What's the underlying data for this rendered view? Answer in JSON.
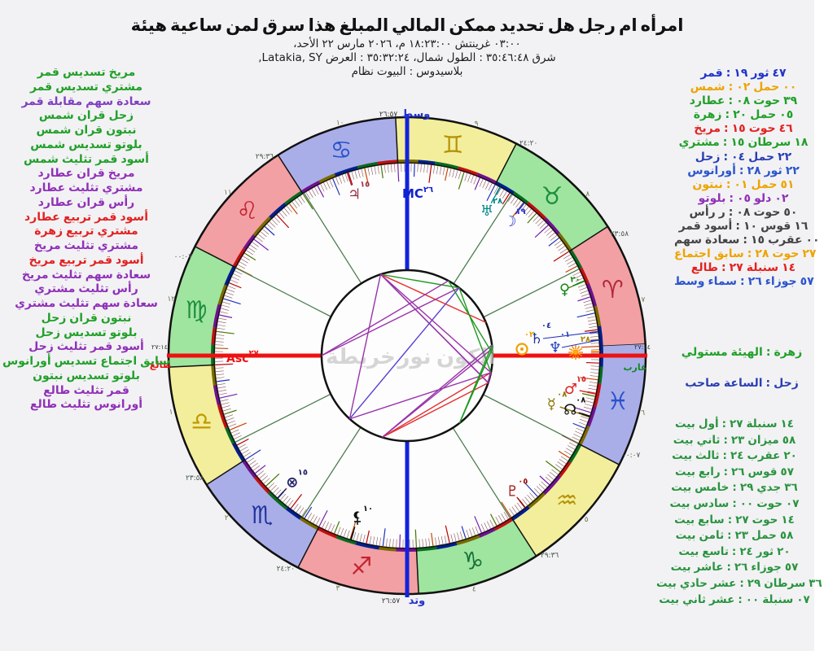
{
  "header": {
    "title": "هيئة ساعية لمن سرق هذا المبلغ المالي ممكن تحديد هل رجل ام امرأه",
    "date_line": "الأحد، ٢٢ مارس ٢٠٢٦ م، ١٨:٢٣:٠٠ غرينتش ٠٣:٠٠",
    "location_line": ",Latakia, SY العرض: ٣٥:٣٢:٢٤ شمال، الطول: ٣٥:٤٦:٤٨ شرق",
    "house_system_line": "نظام البيوت: بلاسيدوس"
  },
  "aspects_panel": [
    {
      "text": "قمر تسديس مريخ",
      "color": "#22a02a"
    },
    {
      "text": "قمر تسديس مشتري",
      "color": "#22a02a"
    },
    {
      "text": "قمر مقابلة سهم سعادة",
      "color": "#8040c0"
    },
    {
      "text": "شمس قران زحل",
      "color": "#22a02a"
    },
    {
      "text": "شمس قران نبتون",
      "color": "#22a02a"
    },
    {
      "text": "شمس تسديس بلوتو",
      "color": "#22a02a"
    },
    {
      "text": "شمس تثليث قمر أسود",
      "color": "#22a02a"
    },
    {
      "text": "عطارد قران مريخ",
      "color": "#9031b8"
    },
    {
      "text": "عطارد تثليث مشتري",
      "color": "#9031b8"
    },
    {
      "text": "عطارد قران رأس",
      "color": "#9031b8"
    },
    {
      "text": "عطارد تربيع قمر أسود",
      "color": "#e32222"
    },
    {
      "text": "زهرة تربيع مشتري",
      "color": "#e32222"
    },
    {
      "text": "مريخ تثليث مشتري",
      "color": "#9031b8"
    },
    {
      "text": "مريخ تربيع قمر أسود",
      "color": "#e32222"
    },
    {
      "text": "مريخ تثليث سهم سعادة",
      "color": "#9031b8"
    },
    {
      "text": "مشتري تثليث رأس",
      "color": "#9031b8"
    },
    {
      "text": "مشتري تثليث سهم سعادة",
      "color": "#9031b8"
    },
    {
      "text": "زحل قران نبتون",
      "color": "#22a02a"
    },
    {
      "text": "زحل تسديس بلوتو",
      "color": "#22a02a"
    },
    {
      "text": "زحل تثليث قمر أسود",
      "color": "#9031b8"
    },
    {
      "text": "أورانوس تسديس اجتماع سابق",
      "color": "#22a02a"
    },
    {
      "text": "نبتون تسديس بلوتو",
      "color": "#22a02a"
    },
    {
      "text": "طالع تثليث قمر",
      "color": "#9031b8"
    },
    {
      "text": "طالع تثليث أورانوس",
      "color": "#9031b8"
    }
  ],
  "planets_panel": [
    {
      "text": "قمر: ١٩ثور٤٧",
      "color": "#2233cc"
    },
    {
      "text": "شمس: ٠٢حمل٠٠",
      "color": "#eda400"
    },
    {
      "text": "عطارد: ٠٨حوت٣٩",
      "color": "#22a02a"
    },
    {
      "text": "زهرة: ٢٠حمل٠٥",
      "color": "#22a02a"
    },
    {
      "text": "مريخ: ١٥حوت٤٦",
      "color": "#e32222"
    },
    {
      "text": "مشتري: ١٥سرطان١٨",
      "color": "#22a02a"
    },
    {
      "text": "زحل: ٠٤حمل٢٢",
      "color": "#2b3fb3"
    },
    {
      "text": "أورانوس: ٢٨ثور٢٢",
      "color": "#2d55cc"
    },
    {
      "text": "نبتون: ٠١حمل٥١",
      "color": "#eda400"
    },
    {
      "text": "بلوتو: ٠٥دلو٠٢",
      "color": "#9031b8"
    },
    {
      "text": "رأس ر: ٠٨حوت٥٠",
      "color": "#444444"
    },
    {
      "text": "قمر أسود: ١٠قوس١٦",
      "color": "#444444"
    },
    {
      "text": "سهم سعادة: ١٥عقرب٠٠",
      "color": "#444444"
    },
    {
      "text": "اجتماع سابق: ٢٨حوت٢٧",
      "color": "#eda400"
    },
    {
      "text": "طالع: ٢٧سنبلة١٤",
      "color": "#e32222"
    },
    {
      "text": "وسط سماء: ٢٦جوزاء٥٧",
      "color": "#2d55cc"
    }
  ],
  "rulers_panel": [
    {
      "text": "مستولي الهيئة: زهرة",
      "color": "#22a02a"
    },
    {
      "text": "صاحب الساعة: زحل",
      "color": "#2b3fb3"
    }
  ],
  "houses_panel": {
    "color": "#2a9440",
    "items": [
      "بيت أول: ٢٧سنبلة١٤",
      "بيت ثاني: ٢٣ميزان٥٨",
      "بيت ثالث: ٢٤عقرب٢٠",
      "بيت رابع: ٢٦قوس٥٧",
      "بيت خامس: ٢٩جدي٣٦",
      "بيت سادس: ٠٠حوت٠٧",
      "بيت سابع: ٢٧حوت١٤",
      "بيت ثامن: ٢٣حمل٥٨",
      "بيت تاسع: ٢٤ثور٢٠",
      "بيت عاشر: ٢٦جوزاء٥٧",
      "بيت حادي عشر: ٢٩سرطان٣٦",
      "بيت ثاني عشر: ٠٠سنبلة٠٧"
    ]
  },
  "chart_data": {
    "type": "horary-astrology-wheel",
    "title": "هيئة ساعية لمن سرق هذا المبلغ المالي ممكن تحديد هل رجل ام امرأه",
    "center": [
      500,
      437
    ],
    "radii": {
      "outer": 293,
      "band_inner": 237,
      "inner": 105,
      "sign_glyph": 265
    },
    "asc_lon": 177.2333,
    "inner_fill": "#fdfdfe",
    "signs": [
      {
        "name": "aries",
        "glyph": "♈",
        "band": "#f2a0a3",
        "glyph_color": "#b02838"
      },
      {
        "name": "taurus",
        "glyph": "♉",
        "band": "#9fe59f",
        "glyph_color": "#1e8f3e"
      },
      {
        "name": "gemini",
        "glyph": "♊",
        "band": "#f3ee9b",
        "glyph_color": "#b5930a"
      },
      {
        "name": "cancer",
        "glyph": "♋",
        "band": "#a9aee8",
        "glyph_color": "#2a52cc"
      },
      {
        "name": "leo",
        "glyph": "♌",
        "band": "#f2a0a3",
        "glyph_color": "#c42333"
      },
      {
        "name": "virgo",
        "glyph": "♍",
        "band": "#9fe59f",
        "glyph_color": "#1e8f3e"
      },
      {
        "name": "libra",
        "glyph": "♎",
        "band": "#f3ee9b",
        "glyph_color": "#bf9a00"
      },
      {
        "name": "scorpio",
        "glyph": "♏",
        "band": "#a9aee8",
        "glyph_color": "#223399"
      },
      {
        "name": "sagittarius",
        "glyph": "♐",
        "band": "#f2a0a3",
        "glyph_color": "#c42333"
      },
      {
        "name": "capricorn",
        "glyph": "♑",
        "band": "#9fe59f",
        "glyph_color": "#17703a"
      },
      {
        "name": "aquarius",
        "glyph": "♒",
        "band": "#f3ee9b",
        "glyph_color": "#b5930a"
      },
      {
        "name": "pisces",
        "glyph": "♓",
        "band": "#a9aee8",
        "glyph_color": "#2a52cc"
      }
    ],
    "planets": [
      {
        "id": "moon",
        "glyph": "☽",
        "lon": 49.783,
        "r": 208,
        "color": "#2233cc",
        "deg": "١٩"
      },
      {
        "id": "uranus",
        "glyph": "♅",
        "lon": 58.367,
        "r": 203,
        "color": "#008888",
        "deg": "٢٨"
      },
      {
        "id": "venus",
        "glyph": "♀",
        "lon": 20.083,
        "r": 210,
        "color": "#118811",
        "deg": "٢٠"
      },
      {
        "id": "sun",
        "glyph": "sun",
        "lon": 2.0,
        "pos": [
          641,
          429
        ],
        "color": "#f0a000",
        "deg": "٠٢",
        "degpos": [
          650,
          414
        ]
      },
      {
        "id": "saturn",
        "glyph": "♄",
        "lon": 4.367,
        "pos": [
          659,
          416
        ],
        "color": "#223399",
        "deg": "٠٤",
        "degpos": [
          671,
          403
        ]
      },
      {
        "id": "neptune",
        "glyph": "♆",
        "lon": 1.85,
        "pos": [
          682,
          427
        ],
        "color": "#2244bb",
        "deg": "٠١",
        "degpos": [
          694,
          414
        ]
      },
      {
        "id": "syzygy",
        "glyph": "burst",
        "lon": 358.45,
        "pos": [
          707,
          433
        ],
        "color": "#ff8800",
        "deg": "٢٨",
        "degpos": [
          719,
          420
        ],
        "degcolor": "#aa8800"
      },
      {
        "id": "mercury",
        "glyph": "☿",
        "lon": 338.65,
        "r": 187,
        "color": "#887700",
        "deg": "٠٨"
      },
      {
        "id": "mars",
        "glyph": "♂",
        "lon": 345.767,
        "r": 205,
        "color": "#dd2222",
        "deg": "١٥"
      },
      {
        "id": "node",
        "glyph": "☊",
        "lon": 338.833,
        "r": 211,
        "color": "#111111",
        "deg": "٠٨"
      },
      {
        "id": "pluto",
        "glyph": "♇",
        "lon": 305.033,
        "r": 211,
        "color": "#991111",
        "deg": "٠٥"
      },
      {
        "id": "lilith",
        "glyph": "lilith",
        "lon": 250.267,
        "r": 209,
        "color": "#111111",
        "deg": "١٠"
      },
      {
        "id": "pof",
        "glyph": "⊗",
        "lon": 225.0,
        "r": 210,
        "color": "#222266",
        "deg": "١٥"
      },
      {
        "id": "jupiter",
        "glyph": "♃",
        "lon": 105.3,
        "r": 209,
        "color": "#993344",
        "deg": "١٥"
      }
    ],
    "cusps": [
      177.2333,
      203.9667,
      234.3333,
      266.95,
      299.6,
      330.1167,
      357.2333,
      23.9667,
      54.3333,
      86.95,
      119.6,
      150.1167
    ],
    "cusp_labels": {
      "2": "٢٣:٥٨",
      "3": "٢٤:٢٠",
      "5": "٢٩:٣٦",
      "6": "٠٠:٠٧",
      "8": "٢٣:٥٨",
      "9": "٢٤:٢٠",
      "11": "٢٩:٣٦",
      "12": "٠٠:٠٧"
    },
    "house_numbers": [
      "١",
      "٢",
      "٣",
      "٤",
      "٥",
      "٦",
      "٧",
      "٨",
      "٩",
      "١٠",
      "١١",
      "١٢"
    ],
    "axes": {
      "asc_label": "Asc",
      "asc_sup": "٢٧",
      "asc_color": "#ee1111",
      "mc_label": "MC",
      "mc_sup": "٢٦",
      "mc_color": "#1122cc",
      "top_time": "٢٦:٥٧",
      "top_word": "وسط",
      "bottom_time": "٢٦:٥٧",
      "bottom_word": "وتد",
      "left_time": "٢٧:١٤",
      "left_word": "طالع",
      "left_word_color": "#ee1111",
      "right_time": "٢٧:١٤",
      "right_word": "غارب",
      "right_word_color": "#118822"
    },
    "aspect_colors": {
      "g": "#229922",
      "p": "#9933aa",
      "r": "#e33030",
      "b": "#5a3fd1"
    },
    "aspect_lines": [
      [
        "moon",
        "mars",
        "g"
      ],
      [
        "moon",
        "jupiter",
        "g"
      ],
      [
        "moon",
        "pof",
        "b"
      ],
      [
        "sun",
        "saturn",
        "g"
      ],
      [
        "sun",
        "neptune",
        "g"
      ],
      [
        "sun",
        "pluto",
        "g"
      ],
      [
        "sun",
        "lilith",
        "p"
      ],
      [
        "mercury",
        "mars",
        "p"
      ],
      [
        "mercury",
        "jupiter",
        "p"
      ],
      [
        "mercury",
        "node",
        "p"
      ],
      [
        "mercury",
        "lilith",
        "r"
      ],
      [
        "venus",
        "jupiter",
        "r"
      ],
      [
        "mars",
        "jupiter",
        "p"
      ],
      [
        "mars",
        "lilith",
        "r"
      ],
      [
        "mars",
        "pof",
        "p"
      ],
      [
        "jupiter",
        "node",
        "p"
      ],
      [
        "jupiter",
        "pof",
        "p"
      ],
      [
        "saturn",
        "neptune",
        "g"
      ],
      [
        "saturn",
        "pluto",
        "g"
      ],
      [
        "saturn",
        "lilith",
        "p"
      ],
      [
        "uranus",
        "syzygy",
        "g"
      ],
      [
        "neptune",
        "pluto",
        "g"
      ],
      [
        "asc",
        "moon",
        "p"
      ],
      [
        "asc",
        "uranus",
        "p"
      ]
    ],
    "watermark_words": [
      "خريطة",
      "نور",
      "الكون"
    ],
    "term_colors": [
      "#001f8f",
      "#7a6a00",
      "#70118f",
      "#c01010",
      "#0a6a20"
    ],
    "term_widths": [
      6,
      6,
      7,
      5,
      6
    ],
    "tick_palette": [
      "#cc4400",
      "#bb0000",
      "#2233bb",
      "#7722aa",
      "#447700"
    ]
  }
}
